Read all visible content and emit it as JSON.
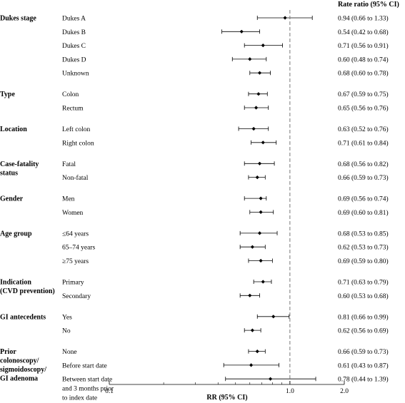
{
  "chart_data": {
    "type": "forest",
    "header": "Rate ratio (95% CI)",
    "xlabel": "RR (95% CI)",
    "xscale": "log",
    "xlim": [
      0.1,
      2.0
    ],
    "xticks": [
      "0.1",
      "1.0",
      "2.0"
    ],
    "reference_line": 1.0,
    "groups": [
      {
        "label": [
          "Dukes stage"
        ],
        "rows": [
          {
            "label": [
              "Dukes A"
            ],
            "rr": 0.94,
            "lo": 0.66,
            "hi": 1.33,
            "text": "0.94 (0.66 to 1.33)"
          },
          {
            "label": [
              "Dukes B"
            ],
            "rr": 0.54,
            "lo": 0.42,
            "hi": 0.68,
            "text": "0.54 (0.42 to 0.68)"
          },
          {
            "label": [
              "Dukes C"
            ],
            "rr": 0.71,
            "lo": 0.56,
            "hi": 0.91,
            "text": "0.71 (0.56 to 0.91)"
          },
          {
            "label": [
              "Dukes D"
            ],
            "rr": 0.6,
            "lo": 0.48,
            "hi": 0.74,
            "text": "0.60 (0.48 to 0.74)"
          },
          {
            "label": [
              "Unknown"
            ],
            "rr": 0.68,
            "lo": 0.6,
            "hi": 0.78,
            "text": "0.68 (0.60 to 0.78)"
          }
        ]
      },
      {
        "label": [
          "Type"
        ],
        "rows": [
          {
            "label": [
              "Colon"
            ],
            "rr": 0.67,
            "lo": 0.59,
            "hi": 0.75,
            "text": "0.67 (0.59 to 0.75)"
          },
          {
            "label": [
              "Rectum"
            ],
            "rr": 0.65,
            "lo": 0.56,
            "hi": 0.76,
            "text": "0.65 (0.56 to 0.76)"
          }
        ]
      },
      {
        "label": [
          "Location"
        ],
        "rows": [
          {
            "label": [
              "Left colon"
            ],
            "rr": 0.63,
            "lo": 0.52,
            "hi": 0.76,
            "text": "0.63 (0.52 to 0.76)"
          },
          {
            "label": [
              "Right colon"
            ],
            "rr": 0.71,
            "lo": 0.61,
            "hi": 0.84,
            "text": "0.71 (0.61 to 0.84)"
          }
        ]
      },
      {
        "label": [
          "Case-fatality",
          "status"
        ],
        "rows": [
          {
            "label": [
              "Fatal"
            ],
            "rr": 0.68,
            "lo": 0.56,
            "hi": 0.82,
            "text": "0.68 (0.56 to 0.82)"
          },
          {
            "label": [
              "Non-fatal"
            ],
            "rr": 0.66,
            "lo": 0.59,
            "hi": 0.73,
            "text": "0.66 (0.59 to 0.73)"
          }
        ]
      },
      {
        "label": [
          "Gender"
        ],
        "rows": [
          {
            "label": [
              "Men"
            ],
            "rr": 0.69,
            "lo": 0.56,
            "hi": 0.74,
            "text": "0.69 (0.56 to 0.74)"
          },
          {
            "label": [
              "Women"
            ],
            "rr": 0.69,
            "lo": 0.6,
            "hi": 0.81,
            "text": "0.69 (0.60 to 0.81)"
          }
        ]
      },
      {
        "label": [
          "Age group"
        ],
        "rows": [
          {
            "label": [
              "≤64 years"
            ],
            "rr": 0.68,
            "lo": 0.53,
            "hi": 0.85,
            "text": "0.68 (0.53 to 0.85)"
          },
          {
            "label": [
              "65–74 years"
            ],
            "rr": 0.62,
            "lo": 0.53,
            "hi": 0.73,
            "text": "0.62 (0.53 to 0.73)"
          },
          {
            "label": [
              "≥75 years"
            ],
            "rr": 0.69,
            "lo": 0.59,
            "hi": 0.8,
            "text": "0.69 (0.59 to 0.80)"
          }
        ]
      },
      {
        "label": [
          "Indication",
          "(CVD prevention)"
        ],
        "rows": [
          {
            "label": [
              "Primary"
            ],
            "rr": 0.71,
            "lo": 0.63,
            "hi": 0.79,
            "text": "0.71 (0.63 to 0.79)"
          },
          {
            "label": [
              "Secondary"
            ],
            "rr": 0.6,
            "lo": 0.53,
            "hi": 0.68,
            "text": "0.60 (0.53 to 0.68)"
          }
        ]
      },
      {
        "label": [
          "GI antecedents"
        ],
        "rows": [
          {
            "label": [
              "Yes"
            ],
            "rr": 0.81,
            "lo": 0.66,
            "hi": 0.99,
            "text": "0.81 (0.66 to 0.99)"
          },
          {
            "label": [
              "No"
            ],
            "rr": 0.62,
            "lo": 0.56,
            "hi": 0.69,
            "text": "0.62 (0.56 to 0.69)"
          }
        ]
      },
      {
        "label": [
          "Prior",
          "colonoscopy/",
          "sigmoidoscopy/",
          "GI adenoma"
        ],
        "rows": [
          {
            "label": [
              "None"
            ],
            "rr": 0.66,
            "lo": 0.59,
            "hi": 0.73,
            "text": "0.66 (0.59 to 0.73)"
          },
          {
            "label": [
              "Before start date"
            ],
            "rr": 0.61,
            "lo": 0.43,
            "hi": 0.87,
            "text": "0.61 (0.43 to 0.87)"
          },
          {
            "label": [
              "Between start date",
              "and 3 months prior",
              "to index date"
            ],
            "rr": 0.78,
            "lo": 0.44,
            "hi": 1.39,
            "text": "0.78 (0.44 to 1.39)"
          }
        ]
      }
    ]
  }
}
